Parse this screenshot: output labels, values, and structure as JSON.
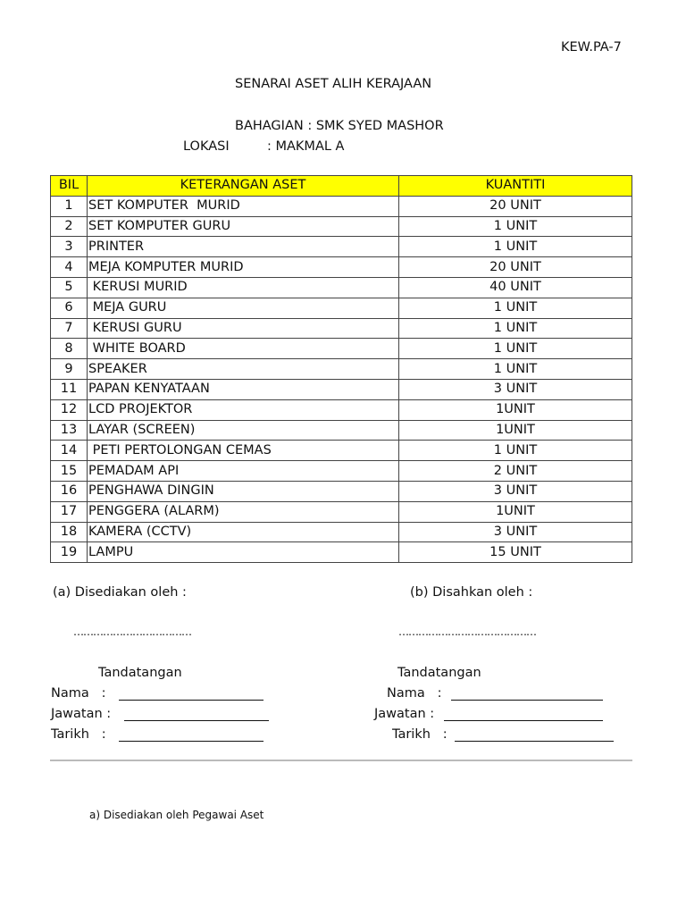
{
  "form_code": "KEW.PA-7",
  "title": "SENARAI ASET ALIH KERAJAAN",
  "bahagian": "BAHAGIAN : SMK SYED MASHOR",
  "lokasi_label": "LOKASI",
  "lokasi_value": ": MAKMAL A",
  "table": {
    "headers": [
      "BIL",
      "KETERANGAN ASET",
      "KUANTITI"
    ],
    "rows": [
      [
        "1",
        "SET KOMPUTER  MURID",
        "20 UNIT"
      ],
      [
        "2",
        "SET KOMPUTER GURU",
        "1 UNIT"
      ],
      [
        "3",
        "PRINTER",
        "1 UNIT"
      ],
      [
        "4",
        "MEJA KOMPUTER MURID",
        "20 UNIT"
      ],
      [
        "5",
        " KERUSI MURID",
        "40 UNIT"
      ],
      [
        "6",
        " MEJA GURU",
        "1 UNIT"
      ],
      [
        "7",
        " KERUSI GURU",
        "1 UNIT"
      ],
      [
        "8",
        " WHITE BOARD",
        "1 UNIT"
      ],
      [
        "9",
        "SPEAKER",
        "1 UNIT"
      ],
      [
        "11",
        "PAPAN KENYATAAN",
        "3 UNIT"
      ],
      [
        "12",
        "LCD PROJEKTOR",
        "1UNIT"
      ],
      [
        "13",
        "LAYAR (SCREEN)",
        "1UNIT"
      ],
      [
        "14",
        " PETI PERTOLONGAN CEMAS",
        "1 UNIT"
      ],
      [
        "15",
        "PEMADAM API",
        "2 UNIT"
      ],
      [
        "16",
        "PENGHAWA DINGIN",
        "3 UNIT"
      ],
      [
        "17",
        "PENGGERA (ALARM)",
        "1UNIT"
      ],
      [
        "18",
        "KAMERA (CCTV)",
        "3 UNIT"
      ],
      [
        "19",
        "LAMPU",
        "15 UNIT"
      ]
    ]
  },
  "signatures": {
    "left": {
      "heading": "(a) Disediakan oleh :",
      "dots": "………………………………",
      "tandatangan": "Tandatangan",
      "nama": "Nama   :",
      "jawatan": "Jawatan :",
      "tarikh": "Tarikh   :"
    },
    "right": {
      "heading": "(b) Disahkan oleh :",
      "dots": "……………………………………",
      "tandatangan": "Tandatangan",
      "nama": "Nama   :",
      "jawatan": "Jawatan :",
      "tarikh": "Tarikh   :"
    }
  },
  "footnote": "a) Disediakan oleh Pegawai Aset"
}
